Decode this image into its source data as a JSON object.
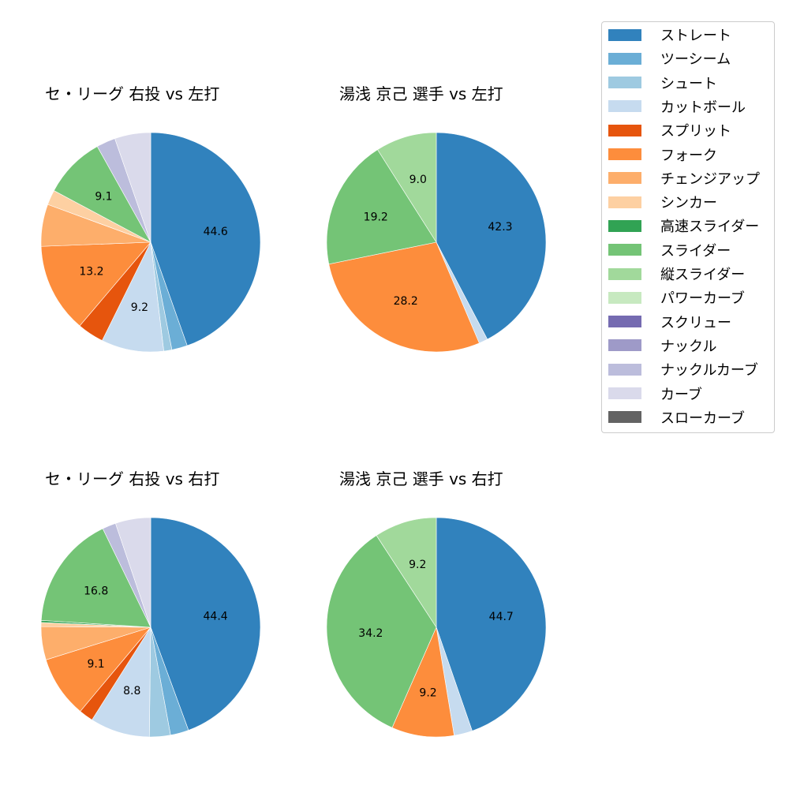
{
  "legend": {
    "items": [
      {
        "label": "ストレート",
        "color": "#3182bd"
      },
      {
        "label": "ツーシーム",
        "color": "#6baed6"
      },
      {
        "label": "シュート",
        "color": "#9ecae1"
      },
      {
        "label": "カットボール",
        "color": "#c6dbef"
      },
      {
        "label": "スプリット",
        "color": "#e6550d"
      },
      {
        "label": "フォーク",
        "color": "#fd8d3c"
      },
      {
        "label": "チェンジアップ",
        "color": "#fdae6b"
      },
      {
        "label": "シンカー",
        "color": "#fdd0a2"
      },
      {
        "label": "高速スライダー",
        "color": "#31a354"
      },
      {
        "label": "スライダー",
        "color": "#74c476"
      },
      {
        "label": "縦スライダー",
        "color": "#a1d99b"
      },
      {
        "label": "パワーカーブ",
        "color": "#c7e9c0"
      },
      {
        "label": "スクリュー",
        "color": "#756bb1"
      },
      {
        "label": "ナックル",
        "color": "#9e9ac8"
      },
      {
        "label": "ナックルカーブ",
        "color": "#bcbddc"
      },
      {
        "label": "カーブ",
        "color": "#dadaeb"
      },
      {
        "label": "スローカーブ",
        "color": "#636363"
      }
    ]
  },
  "chart_data": [
    {
      "type": "pie",
      "title": "セ・リーグ 右投 vs 左打",
      "categories": [
        "ストレート",
        "ツーシーム",
        "シュート",
        "カットボール",
        "スプリット",
        "フォーク",
        "チェンジアップ",
        "シンカー",
        "スライダー",
        "ナックルカーブ",
        "カーブ"
      ],
      "values": [
        44.6,
        2.3,
        1.2,
        9.2,
        3.9,
        13.2,
        6.2,
        2.2,
        9.1,
        2.8,
        5.3
      ],
      "labeled_values": {
        "ストレート": "44.6",
        "カットボール": "9.2",
        "フォーク": "13.2",
        "スライダー": "9.1"
      },
      "start_angle": 90,
      "counterclock": false,
      "label_threshold": 8
    },
    {
      "type": "pie",
      "title": "湯浅 京己 選手 vs 左打",
      "categories": [
        "ストレート",
        "カットボール",
        "フォーク",
        "スライダー",
        "縦スライダー"
      ],
      "values": [
        42.3,
        1.3,
        28.2,
        19.2,
        9.0
      ],
      "labeled_values": {
        "ストレート": "42.3",
        "フォーク": "28.2",
        "スライダー": "19.2",
        "縦スライダー": "9.0"
      },
      "start_angle": 90,
      "counterclock": false,
      "label_threshold": 8
    },
    {
      "type": "pie",
      "title": "セ・リーグ 右投 vs 右打",
      "categories": [
        "ストレート",
        "ツーシーム",
        "シュート",
        "カットボール",
        "スプリット",
        "フォーク",
        "チェンジアップ",
        "シンカー",
        "高速スライダー",
        "スライダー",
        "ナックルカーブ",
        "カーブ"
      ],
      "values": [
        44.4,
        2.7,
        3.1,
        8.8,
        2.1,
        9.1,
        4.9,
        0.6,
        0.3,
        16.8,
        2.0,
        5.2
      ],
      "labeled_values": {
        "ストレート": "44.4",
        "カットボール": "8.8",
        "フォーク": "9.1",
        "スライダー": "16.8"
      },
      "start_angle": 90,
      "counterclock": false,
      "label_threshold": 8
    },
    {
      "type": "pie",
      "title": "湯浅 京己 選手 vs 右打",
      "categories": [
        "ストレート",
        "カットボール",
        "フォーク",
        "スライダー",
        "縦スライダー"
      ],
      "values": [
        44.7,
        2.7,
        9.2,
        34.2,
        9.2
      ],
      "labeled_values": {
        "ストレート": "44.7",
        "フォーク": "9.2",
        "スライダー": "34.2",
        "縦スライダー": "9.2"
      },
      "start_angle": 90,
      "counterclock": false,
      "label_threshold": 8
    }
  ]
}
